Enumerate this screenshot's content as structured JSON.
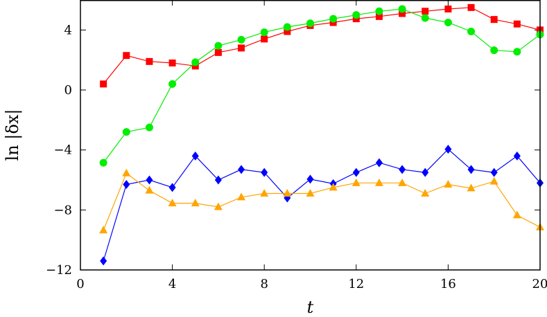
{
  "chart_data": {
    "type": "line",
    "title": "",
    "xlabel": "t",
    "ylabel": "ln |δx|",
    "xlim": [
      0,
      20
    ],
    "ylim": [
      -12,
      6
    ],
    "xticks": [
      0,
      4,
      8,
      12,
      16,
      20
    ],
    "yticks": [
      -12,
      -8,
      -4,
      0,
      4
    ],
    "grid": false,
    "x": [
      1,
      2,
      3,
      4,
      5,
      6,
      7,
      8,
      9,
      10,
      11,
      12,
      13,
      14,
      15,
      16,
      17,
      18,
      19,
      20
    ],
    "series": [
      {
        "marker": "square",
        "color": "#ff0000",
        "values": [
          0.4,
          2.3,
          1.9,
          1.8,
          1.6,
          2.5,
          2.8,
          3.4,
          3.9,
          4.3,
          4.5,
          4.75,
          4.9,
          5.1,
          5.25,
          5.4,
          5.5,
          4.7,
          4.4,
          4.0
        ]
      },
      {
        "marker": "circle",
        "color": "#00ee00",
        "values": [
          -4.85,
          -2.8,
          -2.5,
          0.4,
          1.85,
          2.95,
          3.35,
          3.85,
          4.2,
          4.45,
          4.75,
          5.0,
          5.25,
          5.4,
          4.8,
          4.5,
          3.9,
          2.65,
          2.55,
          3.7
        ]
      },
      {
        "marker": "diamond",
        "color": "#0000ff",
        "values": [
          -11.4,
          -6.3,
          -6.0,
          -6.5,
          -4.4,
          -6.0,
          -5.3,
          -5.5,
          -7.2,
          -5.95,
          -6.25,
          -5.5,
          -4.85,
          -5.3,
          -5.5,
          -3.95,
          -5.3,
          -5.5,
          -4.4,
          -6.2
        ]
      },
      {
        "marker": "triangle",
        "color": "#ffa500",
        "values": [
          -9.35,
          -5.55,
          -6.7,
          -7.55,
          -7.55,
          -7.8,
          -7.15,
          -6.9,
          -6.9,
          -6.9,
          -6.5,
          -6.2,
          -6.2,
          -6.2,
          -6.9,
          -6.3,
          -6.55,
          -6.1,
          -8.35,
          -9.15
        ]
      }
    ]
  }
}
